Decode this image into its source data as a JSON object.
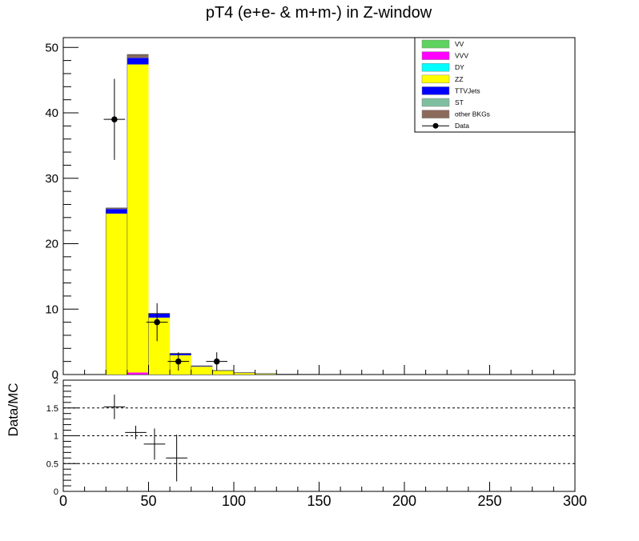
{
  "chart_data": {
    "type": "bar",
    "title": "pT4 (e+e- & m+m-) in Z-window",
    "xlim": [
      0,
      300
    ],
    "bin_width": 12.5,
    "bin_edges_start": 25,
    "main": {
      "ylim": [
        0,
        51.5
      ],
      "yticks": [
        0,
        10,
        20,
        30,
        40,
        50
      ],
      "xticks": [
        0,
        50,
        100,
        150,
        200,
        250,
        300
      ]
    },
    "ratio": {
      "ylabel": "Data/MC",
      "ylim": [
        0,
        2
      ],
      "yticks": [
        "0",
        "0.5",
        "1",
        "1.5",
        "2"
      ],
      "dashed_lines": [
        0.5,
        1.0,
        1.5
      ],
      "xticks": [
        "0",
        "50",
        "100",
        "150",
        "200",
        "250",
        "300"
      ]
    },
    "legend": {
      "position": "top-right",
      "entries": [
        {
          "name": "VV",
          "color": "#5fd35f"
        },
        {
          "name": "VVV",
          "color": "#ff00ff"
        },
        {
          "name": "DY",
          "color": "#00ffff"
        },
        {
          "name": "ZZ",
          "color": "#ffff00"
        },
        {
          "name": "TTVJets",
          "color": "#0000ff"
        },
        {
          "name": "ST",
          "color": "#7fbfa0"
        },
        {
          "name": "other BKGs",
          "color": "#8b6a5c"
        },
        {
          "name": "Data",
          "color": "#000000"
        }
      ]
    },
    "stack": {
      "ZZ": [
        24.6,
        47.4,
        8.7,
        2.95,
        1.2,
        0.55,
        0.25,
        0.1,
        0.05,
        0.04
      ],
      "TTVJets": [
        0.7,
        1.0,
        0.6,
        0.25,
        0.1,
        0.05,
        0.03,
        0.02,
        0.01,
        0.01
      ],
      "other BKGs": [
        0.15,
        0.5,
        0.05,
        0.02,
        0.01,
        0.01,
        0.0,
        0.0,
        0.0,
        0.0
      ],
      "VVV_inner": [
        0,
        0.3,
        0,
        0,
        0,
        0,
        0,
        0,
        0,
        0
      ]
    },
    "data_points": [
      {
        "x": 30,
        "y": 39,
        "err": 6.2,
        "xerr": 6.25
      },
      {
        "x": 55,
        "y": 8,
        "err": 2.9,
        "xerr": 6.25
      },
      {
        "x": 67.5,
        "y": 2,
        "err": 1.4,
        "xerr": 6.25
      },
      {
        "x": 90,
        "y": 2,
        "err": 1.4,
        "xerr": 6.25
      }
    ],
    "ratio_points": [
      {
        "x": 30,
        "y": 1.52,
        "err": 0.22,
        "xerr": 6.25
      },
      {
        "x": 42.5,
        "y": 1.06,
        "err": 0.12,
        "xerr": 6.25
      },
      {
        "x": 53.5,
        "y": 0.85,
        "err": 0.28,
        "xerr": 6.25
      },
      {
        "x": 66.5,
        "y": 0.6,
        "err": 0.42,
        "xerr": 6.25
      }
    ]
  }
}
